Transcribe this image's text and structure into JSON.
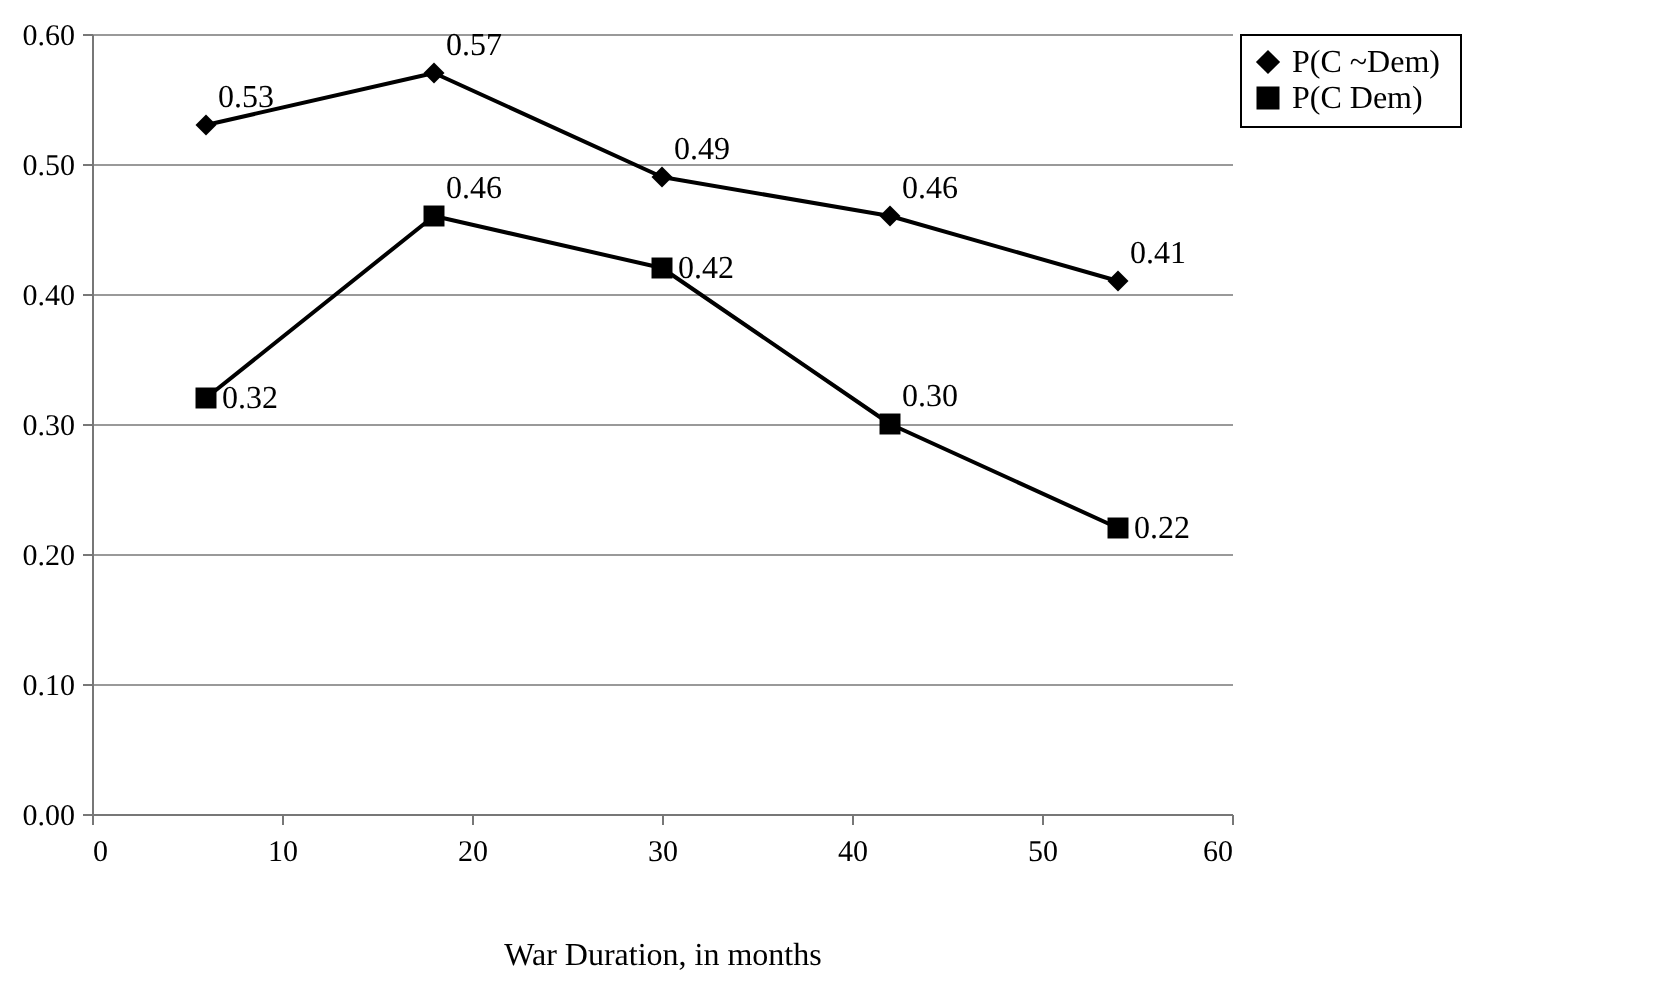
{
  "chart_data": {
    "type": "line",
    "xlabel": "War Duration, in months",
    "x": [
      6,
      18,
      30,
      42,
      54
    ],
    "series": [
      {
        "name": "P(C  ~Dem)",
        "color": "#000000",
        "marker": "diamond",
        "values": [
          0.53,
          0.57,
          0.49,
          0.46,
          0.41
        ],
        "value_labels": [
          "0.53",
          "0.57",
          "0.49",
          "0.46",
          "0.41"
        ]
      },
      {
        "name": "P(C Dem)",
        "color": "#000000",
        "marker": "square",
        "values": [
          0.32,
          0.46,
          0.42,
          0.3,
          0.22
        ],
        "value_labels": [
          "0.32",
          "0.46",
          "0.42",
          "0.30",
          "0.22"
        ]
      }
    ],
    "xlim": [
      0,
      60
    ],
    "xticks": [
      0,
      10,
      20,
      30,
      40,
      50,
      60
    ],
    "ylim": [
      0,
      0.6
    ],
    "yticks": [
      {
        "value": 0,
        "label": "0.00"
      },
      {
        "value": 0.1,
        "label": "0.10"
      },
      {
        "value": 0.2,
        "label": "0.20"
      },
      {
        "value": 0.3,
        "label": "0.30"
      },
      {
        "value": 0.4,
        "label": "0.40"
      },
      {
        "value": 0.5,
        "label": "0.50"
      },
      {
        "value": 0.6,
        "label": "0.60"
      }
    ],
    "grid": "y",
    "legend": "top right",
    "line_style": "solid"
  }
}
